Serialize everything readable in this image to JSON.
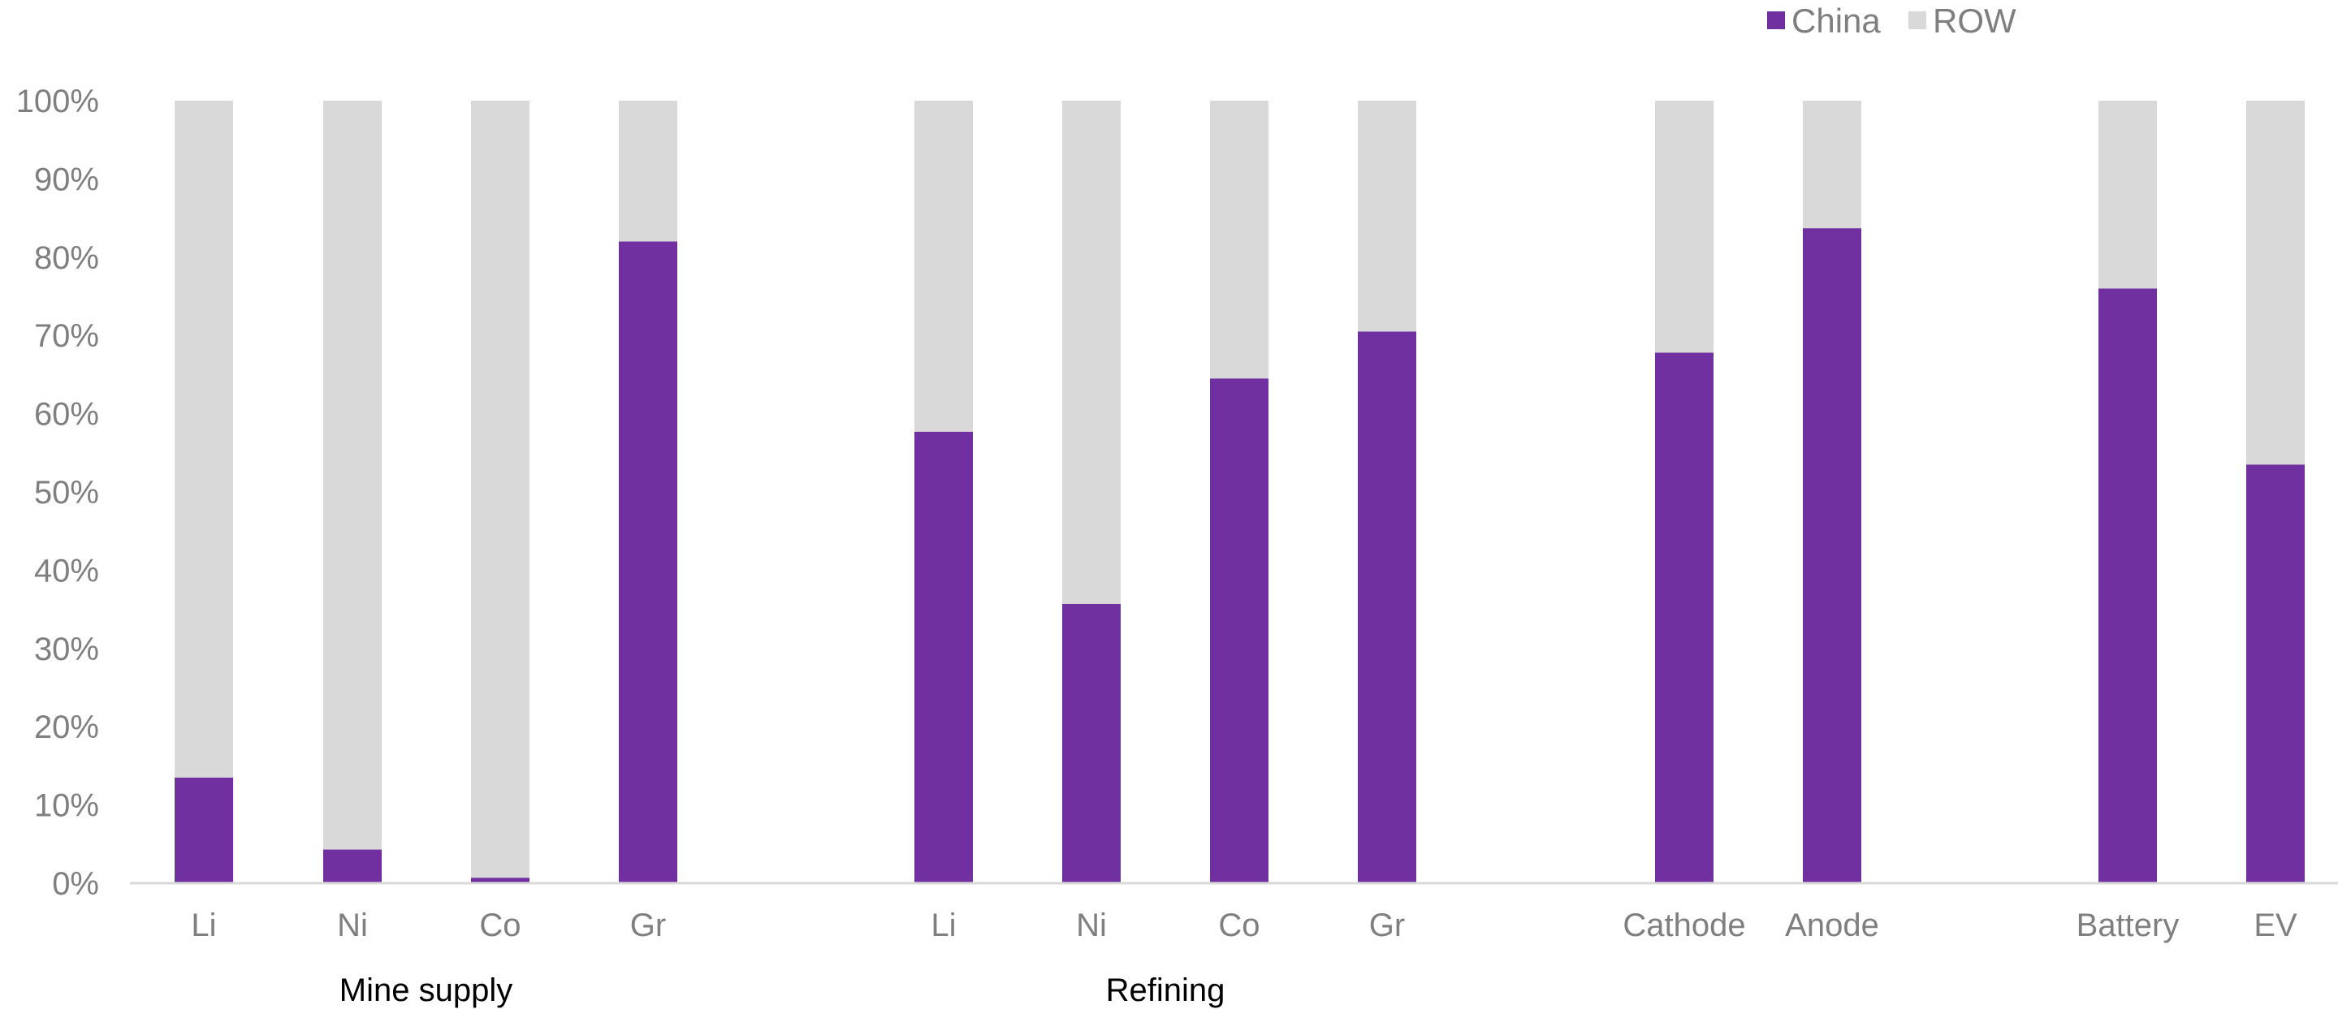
{
  "chart_data": {
    "type": "bar",
    "stacked": true,
    "categories": [
      "Li",
      "Ni",
      "Co",
      "Gr",
      "Li",
      "Ni",
      "Co",
      "Gr",
      "Cathode",
      "Anode",
      "Battery",
      "EV"
    ],
    "groups": [
      {
        "label": "Mine supply",
        "category_indices": [
          0,
          1,
          2,
          3
        ]
      },
      {
        "label": "Refining",
        "category_indices": [
          4,
          5,
          6,
          7
        ]
      },
      {
        "label": "",
        "category_indices": [
          8,
          9
        ]
      },
      {
        "label": "",
        "category_indices": [
          10,
          11
        ]
      }
    ],
    "series": [
      {
        "name": "China",
        "color": "#7030a0",
        "values": [
          13.5,
          4.3,
          0.7,
          82,
          57.7,
          35.7,
          64.5,
          70.5,
          67.8,
          83.7,
          76,
          53.5
        ]
      },
      {
        "name": "ROW",
        "color": "#d9d9d9",
        "values": [
          86.5,
          95.7,
          99.3,
          18,
          42.3,
          64.3,
          35.5,
          29.5,
          32.2,
          16.3,
          24,
          46.5
        ]
      }
    ],
    "ylim": [
      0,
      100
    ],
    "yticks": [
      "0%",
      "10%",
      "20%",
      "30%",
      "40%",
      "50%",
      "60%",
      "70%",
      "80%",
      "90%",
      "100%"
    ],
    "xlabel": "",
    "ylabel": "",
    "grid": false,
    "legend_position": "top-right"
  }
}
